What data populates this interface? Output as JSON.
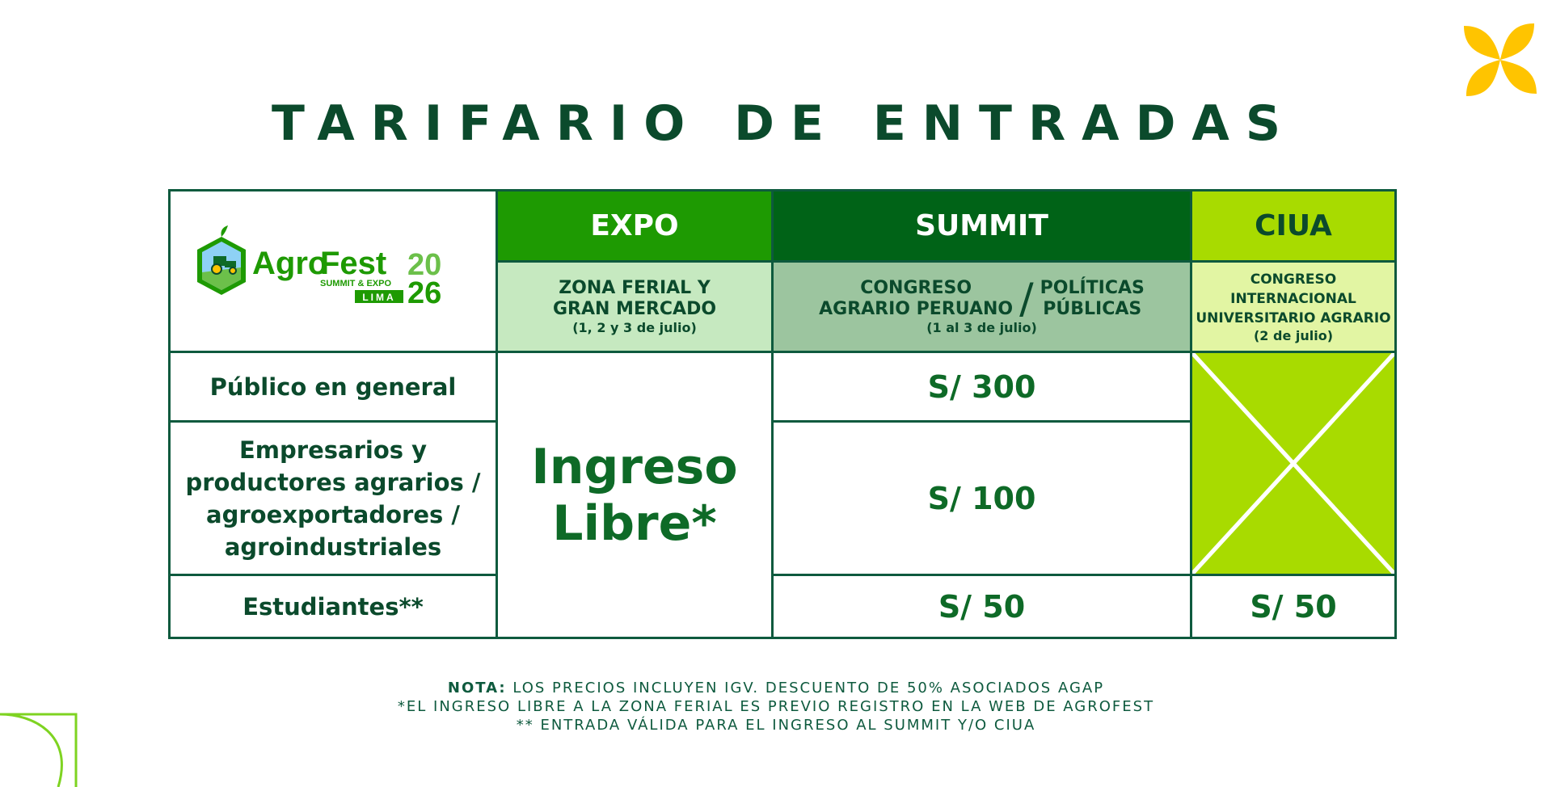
{
  "title": "TARIFARIO DE ENTRADAS",
  "logo": {
    "name_a": "Agro",
    "name_b": "Fest",
    "subtitle": "SUMMIT & EXPO",
    "city": "LIMA",
    "year_top": "20",
    "year_bottom": "26",
    "icon": "tractor-hexagon-icon"
  },
  "columns": {
    "expo": {
      "label": "EXPO",
      "sub_line1": "ZONA FERIAL Y",
      "sub_line2": "GRAN MERCADO",
      "date": "(1, 2 y 3 de julio)"
    },
    "summit": {
      "label": "SUMMIT",
      "sub_a_line1": "CONGRESO",
      "sub_a_line2": "AGRARIO PERUANO",
      "slash": "/",
      "sub_b_line1": "POLÍTICAS",
      "sub_b_line2": "PÚBLICAS",
      "date": "(1 al 3 de julio)"
    },
    "ciua": {
      "label": "CIUA",
      "sub_line1": "CONGRESO",
      "sub_line2": "INTERNACIONAL",
      "sub_line3": "UNIVERSITARIO AGRARIO",
      "date": "(2 de julio)"
    }
  },
  "rows": {
    "publico": {
      "label": "Público en general",
      "summit_price": "S/ 300"
    },
    "empresarios": {
      "label_line1": "Empresarios y",
      "label_line2": "productores agrarios /",
      "label_line3": "agroexportadores /",
      "label_line4": "agroindustriales",
      "summit_price": "S/ 100"
    },
    "estudiantes": {
      "label": "Estudiantes**",
      "summit_price": "S/ 50",
      "ciua_price": "S/ 50"
    }
  },
  "expo_all": {
    "line1": "Ingreso",
    "line2": "Libre*"
  },
  "notes": {
    "prefix": "NOTA:",
    "line1": " LOS PRECIOS INCLUYEN IGV. DESCUENTO DE 50% ASOCIADOS AGAP",
    "line2": "*EL INGRESO LIBRE A LA ZONA FERIAL ES PREVIO REGISTRO EN LA WEB DE AGROFEST",
    "line3": "** ENTRADA VÁLIDA PARA EL INGRESO AL SUMMIT Y/O CIUA"
  },
  "colors": {
    "dark_green": "#0b4a2c",
    "expo_green": "#1e9a02",
    "summit_green": "#006317",
    "ciua_lime": "#a8db00",
    "flower_yellow": "#ffc400"
  },
  "decorations": [
    "flower-icon",
    "leaf-outline-icon"
  ]
}
